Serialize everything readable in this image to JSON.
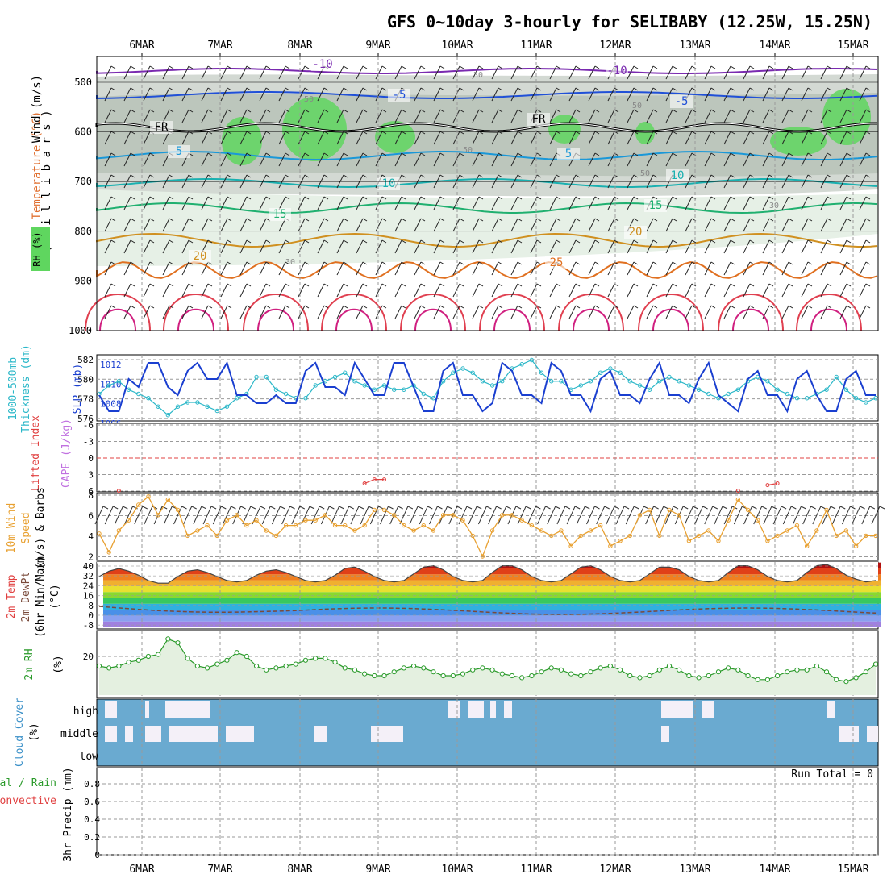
{
  "title": "GFS 0~10day 3-hourly for SELIBABY (12.25W, 15.25N)",
  "days": [
    "6MAR",
    "7MAR",
    "8MAR",
    "9MAR",
    "10MAR",
    "11MAR",
    "12MAR",
    "13MAR",
    "14MAR",
    "15MAR"
  ],
  "run_total": "Run Total = 0",
  "colors": {
    "blue_line": "#1a3fd0",
    "cyan_line": "#2ab7c8",
    "orange": "#e8a030",
    "green": "#2a9a2a",
    "cloud": "#6aaad0",
    "rh_green": "#5fd65f",
    "grid": "#9a9a9a",
    "red": "#e04040",
    "purple": "#c070e0"
  },
  "panels": {
    "upper_air": {
      "ylabel_parts": [
        "Wind (m/s)",
        "Temperature (°C)",
        "RH (%)"
      ],
      "ylabel_units": "( m i l l i b a r s )",
      "yticks": [
        "500",
        "600",
        "700",
        "800",
        "900",
        "1000"
      ],
      "contour_labels": [
        "-10",
        "-10",
        "-5",
        "-5",
        "FR",
        "FR",
        "5",
        "5",
        "10",
        "10",
        "15",
        "15",
        "20",
        "20",
        "25"
      ],
      "rh_labels": [
        "30",
        "50",
        "50",
        "50",
        "50",
        "30",
        "30"
      ]
    },
    "pressure": {
      "ylabel_left": [
        "1000-500mb",
        "Thickness (dm)"
      ],
      "ylabel_right": "SLP (mb)",
      "left_ticks": [
        "582",
        "580",
        "578",
        "576"
      ],
      "right_ticks": [
        "1012",
        "1010",
        "1008",
        "1006"
      ]
    },
    "stability": {
      "ylabel_left": "Lifted Index",
      "ylabel_right": "CAPE (J/kg)",
      "ticks": [
        "-6",
        "-3",
        "0",
        "3",
        "6"
      ]
    },
    "wind10m": {
      "ylabel_parts": [
        "10m Wind",
        "Speed",
        "(m/s) & Barbs"
      ],
      "ticks": [
        "8",
        "6",
        "4",
        "2"
      ]
    },
    "temperature": {
      "ylabel_parts": [
        "2m Temp",
        "2m DewPt",
        "(6hr Min/Max)",
        "(°C)"
      ],
      "ticks": [
        "40",
        "32",
        "24",
        "16",
        "8",
        "0",
        "-8"
      ]
    },
    "rh2m": {
      "ylabel_parts": [
        "2m RH",
        "(%)"
      ],
      "ticks": [
        "20"
      ]
    },
    "cloud": {
      "ylabel_parts": [
        "Cloud Cover",
        "(%)"
      ],
      "levels": [
        "high",
        "middle",
        "low"
      ]
    },
    "precip": {
      "ylabel_parts": [
        "Total / Rain",
        "Convective",
        "3hr Precip (mm)"
      ],
      "ticks": [
        "0.8",
        "0.6",
        "0.4",
        "0.2",
        "0"
      ]
    }
  },
  "chart_data": [
    {
      "type": "line",
      "title": "1000-500mb Thickness (dm) / SLP (mb)",
      "series": [
        {
          "name": "SLP (mb)",
          "values": [
            1008,
            1006,
            1006,
            1010,
            1009,
            1012,
            1012,
            1009,
            1008,
            1011,
            1012,
            1010,
            1010,
            1012,
            1008,
            1008,
            1007,
            1007,
            1008,
            1007,
            1007,
            1011,
            1012,
            1009,
            1009,
            1008,
            1012,
            1010,
            1008,
            1008,
            1012,
            1012,
            1009,
            1006,
            1006,
            1011,
            1012,
            1008,
            1008,
            1006,
            1007,
            1012,
            1011,
            1008,
            1008,
            1007,
            1012,
            1011,
            1008,
            1008,
            1006,
            1010,
            1011,
            1008,
            1008,
            1007,
            1010,
            1012,
            1008,
            1008,
            1007,
            1010,
            1012,
            1008,
            1007,
            1006,
            1010,
            1011,
            1008,
            1008,
            1006,
            1010,
            1011,
            1008,
            1006,
            1006,
            1010,
            1011,
            1008,
            1008
          ]
        },
        {
          "name": "1000-500mb Thickness (dm)",
          "values": [
            578.5,
            579.5,
            580,
            579,
            578.5,
            578,
            577,
            576,
            577,
            577.5,
            577.5,
            577,
            576.5,
            577,
            578,
            578.5,
            580.5,
            580.5,
            579,
            578.5,
            578,
            578,
            579.5,
            580,
            580.5,
            581,
            580,
            579.5,
            579,
            579.5,
            579,
            579,
            579.5,
            578.5,
            578,
            580,
            581,
            581.5,
            581,
            580,
            579.5,
            580,
            581.5,
            582,
            582.5,
            581,
            580,
            580,
            579,
            579.5,
            580,
            581,
            581.5,
            581,
            580,
            579.5,
            579,
            580,
            580.5,
            580,
            579.5,
            579,
            578.5,
            578,
            578.5,
            579,
            580,
            580.5,
            580,
            579,
            578.5,
            578,
            578,
            578.5,
            579,
            580.5,
            579,
            578,
            577.5,
            578
          ]
        }
      ]
    },
    {
      "type": "line",
      "title": "10m Wind Speed (m/s)",
      "ylim": [
        2,
        8
      ],
      "values": [
        4.2,
        2.4,
        4.5,
        5.5,
        7.0,
        7.8,
        6.0,
        7.5,
        6.5,
        4.0,
        4.5,
        5.0,
        4.0,
        5.5,
        6.0,
        5.0,
        5.5,
        4.5,
        4.0,
        5.0,
        5.0,
        5.5,
        5.5,
        6.0,
        5.0,
        5.0,
        4.5,
        5.0,
        6.5,
        6.5,
        6.0,
        5.0,
        4.5,
        5.0,
        4.5,
        6.0,
        6.0,
        5.5,
        4.0,
        2.0,
        4.5,
        6.0,
        6.0,
        5.5,
        5.0,
        4.5,
        4.0,
        4.5,
        3.0,
        4.0,
        4.5,
        5.0,
        3.0,
        3.5,
        4.0,
        6.0,
        6.5,
        4.0,
        6.5,
        6.0,
        3.5,
        4.0,
        4.5,
        3.5,
        5.5,
        7.5,
        6.5,
        5.5,
        3.5,
        4.0,
        4.5,
        5.0,
        3.0,
        4.5,
        6.5,
        4.0,
        4.5,
        3.0,
        4.0,
        4.0
      ]
    },
    {
      "type": "line",
      "title": "2m RH (%)",
      "values": [
        15,
        14,
        15,
        17,
        18,
        20,
        21,
        29,
        27,
        19,
        15,
        14,
        16,
        18,
        22,
        20,
        15,
        13,
        14,
        15,
        16,
        18,
        19,
        19,
        17,
        14,
        13,
        11,
        10,
        10,
        12,
        14,
        15,
        14,
        12,
        10,
        10,
        11,
        13,
        14,
        13,
        11,
        10,
        9,
        10,
        12,
        14,
        13,
        11,
        10,
        12,
        14,
        15,
        13,
        10,
        9,
        10,
        13,
        15,
        13,
        10,
        9,
        10,
        12,
        14,
        13,
        10,
        8,
        8,
        10,
        12,
        13,
        13,
        15,
        12,
        8,
        7,
        9,
        12,
        16
      ]
    },
    {
      "type": "area",
      "title": "2m Temp (°C)",
      "ylim": [
        -8,
        40
      ],
      "values": [
        30,
        34,
        36,
        34,
        31,
        27,
        25,
        25,
        30,
        34,
        35,
        33,
        30,
        27,
        26,
        27,
        31,
        34,
        35,
        33,
        30,
        27,
        26,
        27,
        31,
        36,
        37,
        34,
        30,
        27,
        26,
        27,
        32,
        37,
        38,
        35,
        30,
        27,
        26,
        27,
        33,
        38,
        38,
        35,
        30,
        27,
        26,
        27,
        32,
        37,
        38,
        35,
        30,
        27,
        26,
        27,
        32,
        37,
        37,
        35,
        30,
        27,
        26,
        27,
        33,
        38,
        38,
        35,
        30,
        27,
        26,
        27,
        33,
        38,
        39,
        36,
        31,
        28,
        26,
        27
      ]
    },
    {
      "type": "line",
      "title": "Lifted Index / CAPE",
      "ylim": [
        -6,
        6
      ],
      "values": [
        null,
        null,
        5.8,
        null,
        null,
        null,
        null,
        null,
        null,
        null,
        null,
        null,
        null,
        null,
        null,
        null,
        null,
        null,
        null,
        null,
        null,
        null,
        null,
        null,
        null,
        null,
        null,
        4.5,
        3.8,
        3.8,
        null,
        null,
        null,
        null,
        null,
        null,
        null,
        null,
        null,
        null,
        null,
        null,
        null,
        null,
        null,
        null,
        null,
        null,
        null,
        null,
        null,
        null,
        null,
        null,
        null,
        null,
        null,
        null,
        null,
        null,
        null,
        null,
        null,
        null,
        null,
        5.8,
        null,
        null,
        4.8,
        4.5,
        null,
        null,
        null,
        null,
        null,
        null,
        null,
        null,
        null,
        null
      ]
    }
  ]
}
